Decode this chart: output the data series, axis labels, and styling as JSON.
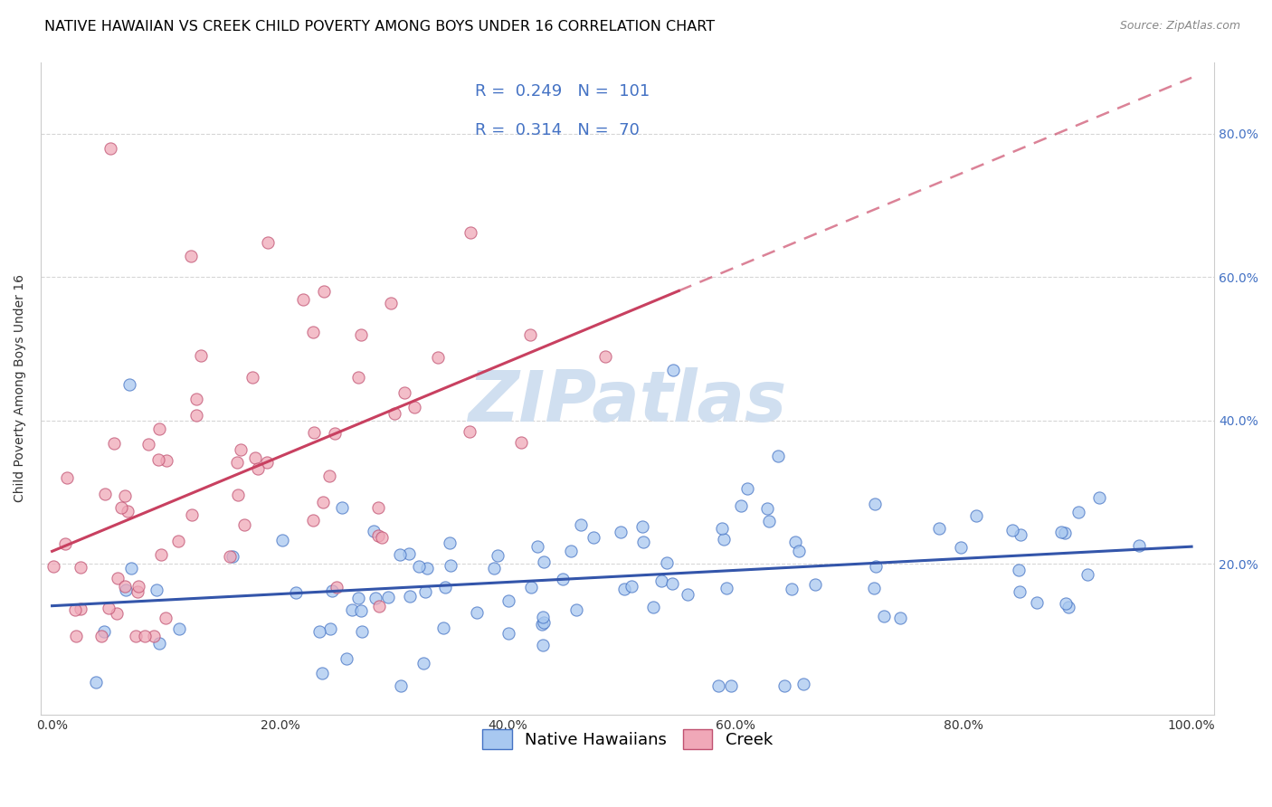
{
  "title": "NATIVE HAWAIIAN VS CREEK CHILD POVERTY AMONG BOYS UNDER 16 CORRELATION CHART",
  "source": "Source: ZipAtlas.com",
  "ylabel": "Child Poverty Among Boys Under 16",
  "legend1_label": "Native Hawaiians",
  "legend2_label": "Creek",
  "r1": "0.249",
  "n1": "101",
  "r2": "0.314",
  "n2": "70",
  "color_nh": "#a8c8f0",
  "color_creek": "#f0a8b8",
  "edge_nh": "#4472c4",
  "edge_creek": "#c05070",
  "trendline_nh": "#3355aa",
  "trendline_creek": "#c84060",
  "watermark": "ZIPatlas",
  "watermark_color": "#d0dff0",
  "title_fontsize": 11.5,
  "axis_label_fontsize": 10,
  "tick_fontsize": 10,
  "legend_fontsize": 13,
  "right_tick_color": "#4472c4",
  "seed_nh": 7,
  "seed_creek": 13
}
